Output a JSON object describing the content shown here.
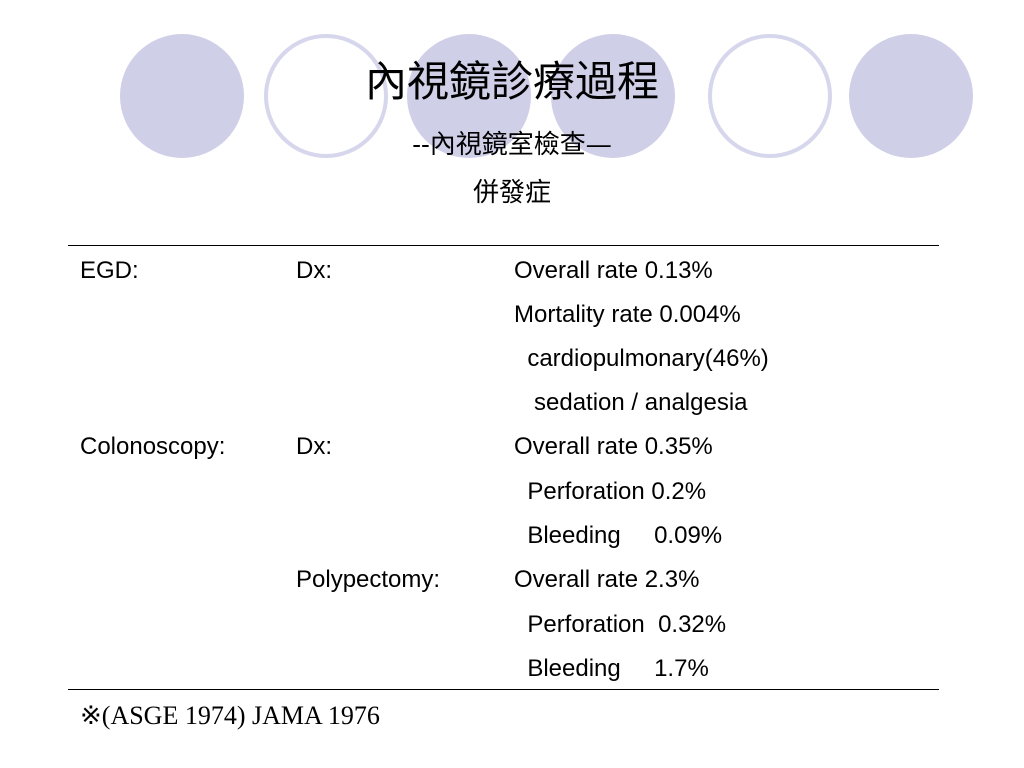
{
  "slide": {
    "title": "內視鏡診療過程",
    "subtitle": "--內視鏡室檢查—",
    "subtitle2": "併發症",
    "decor_colors": {
      "fill": "#cfcfe8",
      "ring": "#d6d6ec"
    }
  },
  "table": {
    "rows": [
      {
        "c1": "EGD:",
        "c2": "Dx:",
        "c3": "Overall rate 0.13%"
      },
      {
        "c1": "",
        "c2": "",
        "c3": "Mortality rate 0.004%"
      },
      {
        "c1": "",
        "c2": "",
        "c3": "  cardiopulmonary(46%)"
      },
      {
        "c1": "",
        "c2": "",
        "c3": "   sedation / analgesia"
      },
      {
        "c1": "Colonoscopy:",
        "c2": "Dx:",
        "c3": "Overall rate 0.35%"
      },
      {
        "c1": "",
        "c2": "",
        "c3": "  Perforation 0.2%"
      },
      {
        "c1": "",
        "c2": "",
        "c3": "  Bleeding     0.09%"
      },
      {
        "c1": "",
        "c2": "Polypectomy:",
        "c3": "Overall rate 2.3%"
      },
      {
        "c1": "",
        "c2": "",
        "c3": "  Perforation  0.32%"
      },
      {
        "c1": "",
        "c2": "",
        "c3": "  Bleeding     1.7%"
      }
    ]
  },
  "footnote": "※(ASGE 1974) JAMA 1976"
}
